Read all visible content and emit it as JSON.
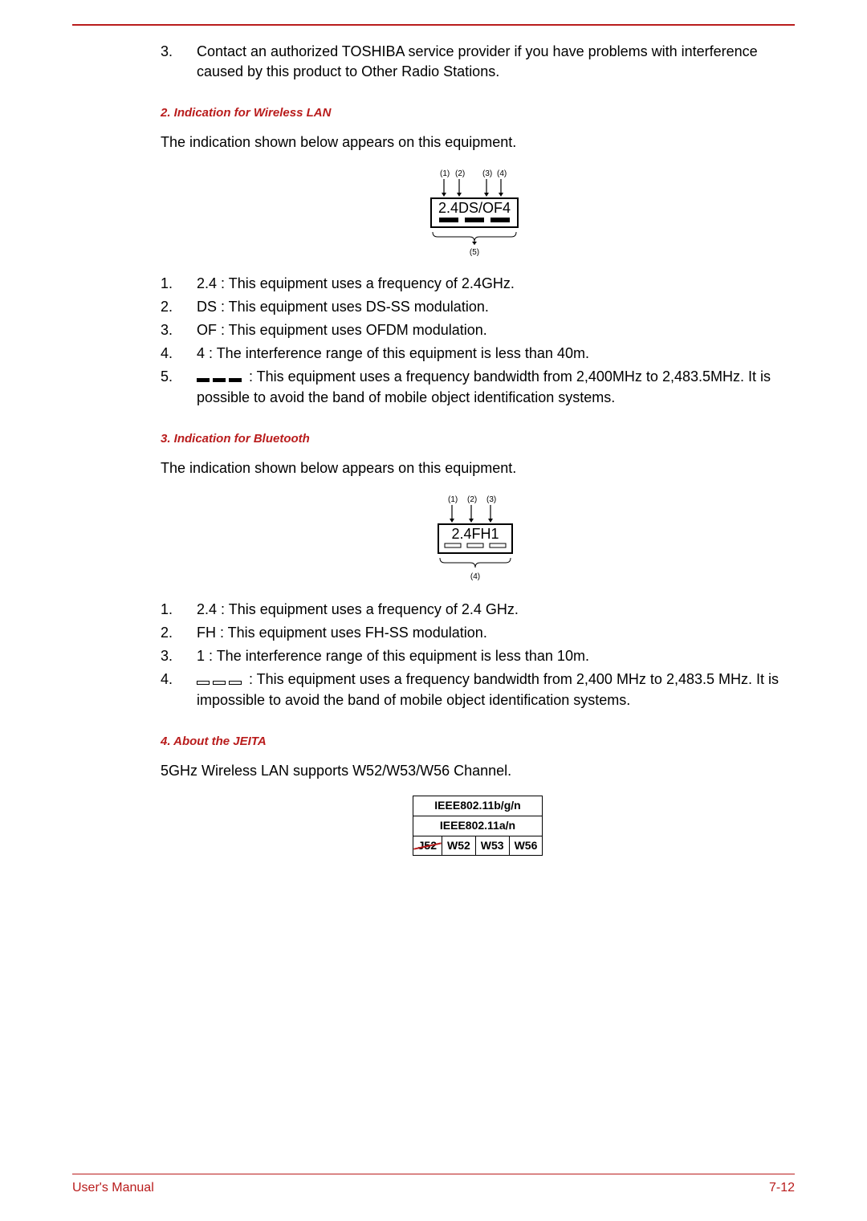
{
  "intro_item": {
    "num": "3.",
    "text": "Contact an authorized TOSHIBA service provider if you have problems with interference caused by this product to Other Radio Stations."
  },
  "section_wlan": {
    "heading": "2. Indication for Wireless LAN",
    "intro": "The indication shown below appears on this equipment.",
    "figure": {
      "labels_top": [
        "(1)",
        "(2)",
        "(3)",
        "(4)"
      ],
      "box_text": "2.4DS/OF4",
      "label_bottom": "(5)"
    },
    "items": [
      {
        "num": "1.",
        "text": "2.4 : This equipment uses a frequency of 2.4GHz."
      },
      {
        "num": "2.",
        "text": "DS : This equipment uses DS-SS modulation."
      },
      {
        "num": "3.",
        "text": "OF : This equipment uses OFDM modulation."
      },
      {
        "num": "4.",
        "text": "4 : The interference range of this equipment is less than 40m."
      },
      {
        "num": "5.",
        "prefix_bars": true,
        "text": " : This equipment uses a frequency bandwidth from 2,400MHz to 2,483.5MHz. It is possible to avoid the band of mobile object identification systems."
      }
    ]
  },
  "section_bt": {
    "heading": "3. Indication for Bluetooth",
    "intro": "The indication shown below appears on this equipment.",
    "figure": {
      "labels_top": [
        "(1)",
        "(2)",
        "(3)"
      ],
      "box_text": "2.4FH1",
      "label_bottom": "(4)"
    },
    "items": [
      {
        "num": "1.",
        "text": "2.4 : This equipment uses a frequency of 2.4 GHz."
      },
      {
        "num": "2.",
        "text": "FH : This equipment uses FH-SS modulation."
      },
      {
        "num": "3.",
        "text": "1 : The interference range of this equipment is less than 10m."
      },
      {
        "num": "4.",
        "prefix_outline": true,
        "text": " : This equipment uses a frequency bandwidth from 2,400 MHz to 2,483.5 MHz. It is impossible to avoid the band of mobile object identification systems."
      }
    ]
  },
  "section_jeita": {
    "heading": "4. About the JEITA",
    "intro": "5GHz Wireless LAN supports W52/W53/W56 Channel.",
    "table": {
      "row1": "IEEE802.11b/g/n",
      "row2": "IEEE802.11a/n",
      "row3": [
        "J52",
        "W52",
        "W53",
        "W56"
      ]
    }
  },
  "footer": {
    "left": "User's Manual",
    "right": "7-12"
  },
  "colors": {
    "accent": "#b91c1c",
    "text": "#000000",
    "bg": "#ffffff"
  }
}
